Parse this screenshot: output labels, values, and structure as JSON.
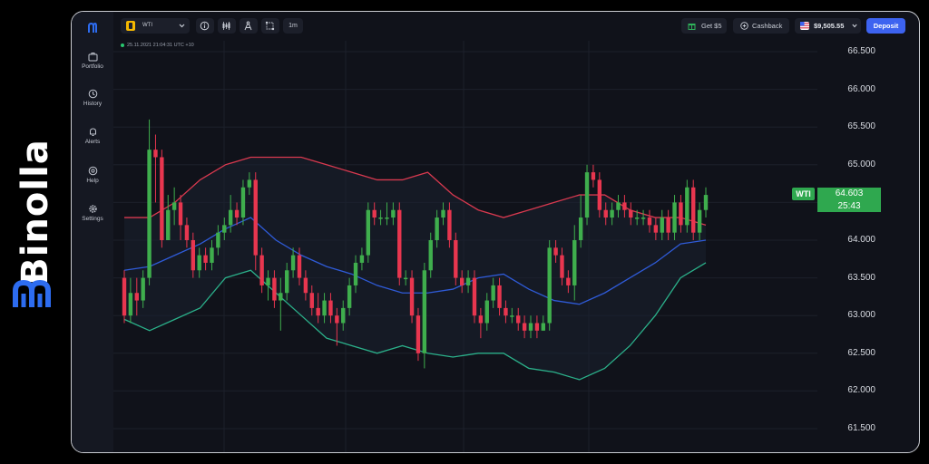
{
  "brand": {
    "name": "Binolla"
  },
  "sidebar": {
    "items": [
      {
        "label": "Portfolio",
        "icon": "portfolio-icon"
      },
      {
        "label": "History",
        "icon": "history-icon"
      },
      {
        "label": "Alerts",
        "icon": "alerts-icon"
      },
      {
        "label": "Help",
        "icon": "help-icon"
      },
      {
        "label": "Settings",
        "icon": "settings-icon"
      }
    ]
  },
  "toolbar": {
    "asset": "WTI",
    "timeframe": "1m",
    "bonus_label": "Get $5",
    "cashback_label": "Cashback",
    "balance": "$9,505.55",
    "deposit_label": "Deposit"
  },
  "chart": {
    "info": "25.11.2021  21:04:31  UTC +10",
    "current_symbol": "WTI",
    "current_price": "64.603",
    "countdown": "25:43",
    "price_labels": [
      "66.500",
      "66.000",
      "65.500",
      "65.000",
      "64.500",
      "64.000",
      "63.500",
      "63.000",
      "62.500",
      "62.000",
      "61.500"
    ]
  },
  "colors": {
    "up": "#3fae4d",
    "down": "#e8364f",
    "upper_band": "#d8394f",
    "middle_band": "#2f5bd8",
    "lower_band": "#2bb08a",
    "deposit": "#3d63f0",
    "brand_blue": "#2d6cf0"
  },
  "chart_data": {
    "type": "candlestick",
    "y_range": [
      61.5,
      66.5
    ],
    "candles": [
      [
        63.5,
        63.0,
        63.6,
        62.9
      ],
      [
        63.0,
        63.3,
        63.5,
        62.9
      ],
      [
        63.3,
        63.2,
        63.5,
        63.0
      ],
      [
        63.2,
        63.5,
        63.6,
        63.1
      ],
      [
        63.5,
        65.2,
        65.6,
        63.4
      ],
      [
        65.2,
        65.1,
        65.4,
        64.5
      ],
      [
        65.1,
        64.0,
        65.2,
        63.9
      ],
      [
        64.0,
        64.4,
        64.6,
        64.0
      ],
      [
        64.4,
        64.5,
        64.7,
        64.2
      ],
      [
        64.5,
        64.2,
        64.6,
        64.0
      ],
      [
        64.2,
        64.0,
        64.3,
        63.9
      ],
      [
        64.0,
        63.6,
        64.1,
        63.5
      ],
      [
        63.6,
        63.8,
        63.9,
        63.5
      ],
      [
        63.8,
        63.7,
        63.9,
        63.6
      ],
      [
        63.7,
        63.9,
        64.0,
        63.6
      ],
      [
        63.9,
        64.1,
        64.2,
        63.8
      ],
      [
        64.1,
        64.2,
        64.3,
        64.0
      ],
      [
        64.2,
        64.4,
        64.6,
        64.1
      ],
      [
        64.4,
        64.3,
        64.5,
        64.2
      ],
      [
        64.3,
        64.7,
        64.8,
        64.2
      ],
      [
        64.7,
        64.8,
        64.9,
        64.6
      ],
      [
        64.8,
        63.8,
        64.9,
        63.6
      ],
      [
        63.8,
        63.4,
        63.9,
        63.3
      ],
      [
        63.4,
        63.5,
        63.6,
        63.2
      ],
      [
        63.5,
        63.2,
        63.6,
        63.1
      ],
      [
        63.2,
        63.3,
        63.5,
        62.8
      ],
      [
        63.3,
        63.6,
        63.7,
        63.2
      ],
      [
        63.6,
        63.8,
        63.9,
        63.5
      ],
      [
        63.8,
        63.5,
        63.9,
        63.4
      ],
      [
        63.5,
        63.3,
        63.6,
        63.2
      ],
      [
        63.3,
        63.1,
        63.4,
        63.0
      ],
      [
        63.1,
        63.0,
        63.3,
        62.9
      ],
      [
        63.0,
        63.2,
        63.3,
        62.9
      ],
      [
        63.2,
        63.0,
        63.3,
        62.9
      ],
      [
        63.0,
        62.9,
        63.1,
        62.6
      ],
      [
        62.9,
        63.1,
        63.2,
        62.8
      ],
      [
        63.1,
        63.4,
        63.5,
        63.0
      ],
      [
        63.4,
        63.7,
        63.8,
        63.3
      ],
      [
        63.7,
        63.8,
        63.9,
        63.6
      ],
      [
        63.8,
        64.4,
        64.5,
        63.7
      ],
      [
        64.4,
        64.3,
        64.5,
        64.2
      ],
      [
        64.3,
        64.3,
        64.4,
        64.2
      ],
      [
        64.3,
        64.3,
        64.5,
        64.2
      ],
      [
        64.3,
        64.4,
        64.5,
        64.2
      ],
      [
        64.4,
        63.5,
        64.5,
        63.4
      ],
      [
        63.5,
        63.5,
        63.6,
        63.4
      ],
      [
        63.5,
        63.0,
        63.6,
        62.9
      ],
      [
        63.0,
        62.5,
        63.1,
        62.4
      ],
      [
        62.5,
        63.6,
        63.7,
        62.3
      ],
      [
        63.6,
        64.0,
        64.1,
        63.5
      ],
      [
        64.0,
        64.3,
        64.4,
        63.9
      ],
      [
        64.3,
        64.4,
        64.5,
        64.2
      ],
      [
        64.4,
        64.0,
        64.5,
        63.9
      ],
      [
        64.0,
        63.5,
        64.1,
        63.4
      ],
      [
        63.5,
        63.4,
        63.6,
        63.3
      ],
      [
        63.4,
        63.5,
        63.6,
        63.3
      ],
      [
        63.5,
        63.0,
        63.6,
        62.9
      ],
      [
        63.0,
        62.9,
        63.1,
        62.7
      ],
      [
        62.9,
        63.2,
        63.3,
        62.8
      ],
      [
        63.2,
        63.4,
        63.5,
        63.1
      ],
      [
        63.4,
        63.1,
        63.5,
        63.0
      ],
      [
        63.1,
        63.0,
        63.2,
        62.9
      ],
      [
        63.0,
        63.0,
        63.1,
        62.9
      ],
      [
        63.0,
        62.9,
        63.1,
        62.8
      ],
      [
        62.9,
        62.8,
        63.0,
        62.7
      ],
      [
        62.8,
        62.9,
        63.0,
        62.7
      ],
      [
        62.9,
        62.8,
        63.0,
        62.7
      ],
      [
        62.8,
        62.9,
        63.0,
        62.8
      ],
      [
        62.9,
        63.9,
        64.0,
        62.8
      ],
      [
        63.9,
        63.8,
        64.0,
        63.7
      ],
      [
        63.8,
        63.5,
        63.9,
        63.4
      ],
      [
        63.5,
        63.4,
        63.6,
        63.3
      ],
      [
        63.4,
        64.0,
        64.2,
        63.2
      ],
      [
        64.0,
        64.3,
        64.6,
        63.9
      ],
      [
        64.3,
        64.9,
        65.0,
        64.2
      ],
      [
        64.9,
        64.8,
        65.0,
        64.7
      ],
      [
        64.8,
        64.4,
        64.9,
        64.3
      ],
      [
        64.4,
        64.3,
        64.5,
        64.2
      ],
      [
        64.3,
        64.4,
        64.5,
        64.2
      ],
      [
        64.4,
        64.5,
        64.6,
        64.3
      ],
      [
        64.5,
        64.4,
        64.6,
        64.3
      ],
      [
        64.4,
        64.3,
        64.5,
        64.2
      ],
      [
        64.3,
        64.3,
        64.4,
        64.2
      ],
      [
        64.3,
        64.3,
        64.4,
        64.2
      ],
      [
        64.3,
        64.2,
        64.4,
        64.1
      ],
      [
        64.2,
        64.1,
        64.3,
        64.0
      ],
      [
        64.1,
        64.3,
        64.4,
        64.0
      ],
      [
        64.3,
        64.1,
        64.4,
        64.0
      ],
      [
        64.1,
        64.5,
        64.6,
        64.0
      ],
      [
        64.5,
        64.2,
        64.6,
        64.1
      ],
      [
        64.2,
        64.7,
        64.8,
        64.1
      ],
      [
        64.7,
        64.1,
        64.8,
        64.0
      ],
      [
        64.1,
        64.4,
        64.5,
        64.0
      ],
      [
        64.4,
        64.6,
        64.7,
        64.3
      ]
    ],
    "upper_band": [
      64.3,
      64.3,
      64.5,
      64.8,
      65.0,
      65.1,
      65.1,
      65.1,
      65.0,
      64.9,
      64.8,
      64.8,
      64.9,
      64.6,
      64.4,
      64.3,
      64.4,
      64.5,
      64.6,
      64.6,
      64.4,
      64.3,
      64.3,
      64.2
    ],
    "middle_band": [
      63.6,
      63.65,
      63.8,
      63.95,
      64.15,
      64.3,
      64.0,
      63.8,
      63.65,
      63.55,
      63.4,
      63.3,
      63.3,
      63.35,
      63.5,
      63.55,
      63.35,
      63.2,
      63.15,
      63.3,
      63.5,
      63.7,
      63.95,
      64.0
    ],
    "lower_band": [
      62.95,
      62.8,
      62.95,
      63.1,
      63.5,
      63.6,
      63.3,
      63.0,
      62.7,
      62.6,
      62.5,
      62.6,
      62.5,
      62.45,
      62.5,
      62.5,
      62.3,
      62.25,
      62.15,
      62.3,
      62.6,
      63.0,
      63.5,
      63.7
    ]
  }
}
